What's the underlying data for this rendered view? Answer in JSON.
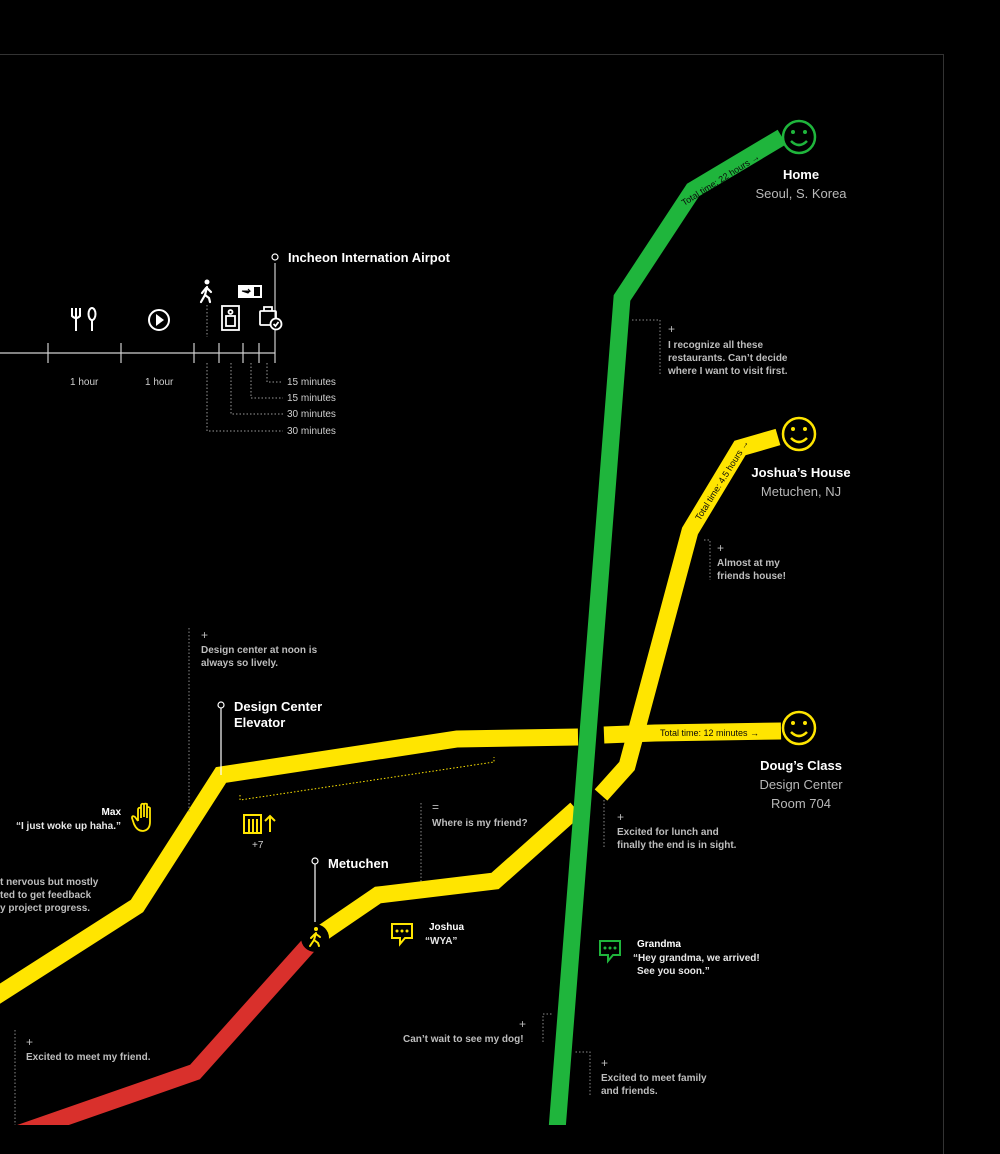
{
  "destinations": {
    "home": {
      "title": "Home",
      "subtitle": "Seoul, S. Korea"
    },
    "joshua": {
      "title": "Joshua’s House",
      "subtitle": "Metuchen, NJ"
    },
    "doug": {
      "title": "Doug’s Class",
      "subtitle_1": "Design Center",
      "subtitle_2": "Room 704"
    }
  },
  "total_times": {
    "green": "Total time: 22 hours →",
    "yellow": "Total time: 4.5 hours →",
    "doug": "Total time: 12 minutes →"
  },
  "timeline": {
    "airport_label": "Incheon Internation Airpot",
    "hour_labels": [
      "1 hour",
      "1 hour"
    ],
    "minute_labels": [
      "15 minutes",
      "15 minutes",
      "30 minutes",
      "30 minutes"
    ]
  },
  "stops": {
    "design_center": {
      "line1": "Design Center",
      "line2": "Elevator"
    },
    "metuchen": "Metuchen"
  },
  "elevator_count": "+7",
  "notes": {
    "restaurants": {
      "sign": "+",
      "lines": [
        "I recognize all these",
        "restaurants. Can’t decide",
        "where I want to visit first."
      ]
    },
    "almost": {
      "sign": "+",
      "lines": [
        "Almost at my",
        "friends house!"
      ]
    },
    "design_noon": {
      "sign": "+",
      "lines": [
        "Design center at noon is",
        "always so lively."
      ]
    },
    "where_friend": {
      "sign": "=",
      "lines": [
        "Where is my friend?"
      ]
    },
    "excited_lunch": {
      "sign": "+",
      "lines": [
        "Excited for lunch and",
        "finally the end is in sight."
      ]
    },
    "nervous": {
      "lines": [
        "t nervous but mostly",
        "ted to get feedback",
        "y project progress."
      ]
    },
    "meet_friend": {
      "sign": "+",
      "lines": [
        "Excited to meet my friend."
      ]
    },
    "dog": {
      "sign": "+",
      "lines": [
        "Can’t wait to see my dog!"
      ]
    },
    "family": {
      "sign": "+",
      "lines": [
        "Excited to meet family",
        "and friends."
      ]
    }
  },
  "messages": {
    "max": {
      "name": "Max",
      "text": "“I just woke up haha.”"
    },
    "joshua": {
      "name": "Joshua",
      "text": "“WYA”"
    },
    "grandma": {
      "name": "Grandma",
      "lines": [
        "“Hey grandma, we arrived!",
        "See you soon.”"
      ]
    }
  },
  "colors": {
    "green": "#1fb53c",
    "yellow": "#ffe500",
    "red": "#d9302c",
    "background": "#000000",
    "grey_text": "#bdbdbd"
  },
  "icons": [
    "smiley-icon",
    "fork-knife-icon",
    "play-icon",
    "walking-person-icon",
    "boarding-pass-icon",
    "security-door-icon",
    "suitcase-check-icon",
    "chat-bubble-icon",
    "hand-wave-icon",
    "elevator-icon"
  ]
}
